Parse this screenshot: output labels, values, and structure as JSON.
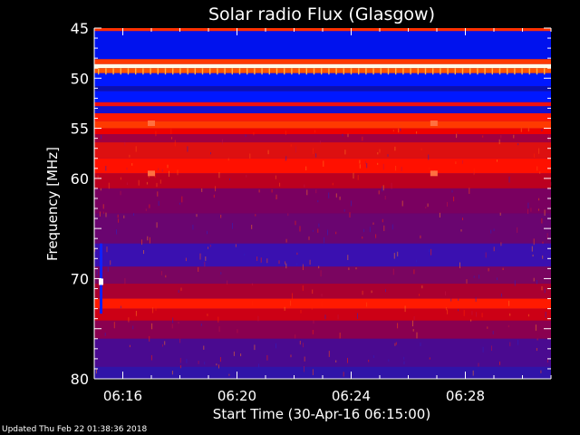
{
  "chart_data": {
    "type": "heatmap",
    "title": "Solar radio Flux (Glasgow)",
    "xlabel": "Start Time (30-Apr-16 06:15:00)",
    "ylabel": "Frequency [MHz]",
    "x_range_minutes": [
      0,
      16
    ],
    "y_range_mhz": [
      45,
      80
    ],
    "x_ticks": [
      {
        "label": "06:16",
        "minute": 1
      },
      {
        "label": "06:20",
        "minute": 5
      },
      {
        "label": "06:24",
        "minute": 9
      },
      {
        "label": "06:28",
        "minute": 13
      }
    ],
    "y_ticks": [
      {
        "label": "45",
        "value": 45
      },
      {
        "label": "50",
        "value": 50
      },
      {
        "label": "55",
        "value": 55
      },
      {
        "label": "60",
        "value": 60
      },
      {
        "label": "70",
        "value": 70
      },
      {
        "label": "80",
        "value": 80
      }
    ],
    "bands": [
      {
        "from": 45.0,
        "to": 45.3,
        "color": "#ff3000"
      },
      {
        "from": 45.3,
        "to": 48.1,
        "color": "#0012ee"
      },
      {
        "from": 48.1,
        "to": 48.6,
        "color": "#ff3a00"
      },
      {
        "from": 48.6,
        "to": 49.0,
        "color": "#fffbe8"
      },
      {
        "from": 49.0,
        "to": 49.5,
        "color": "#ff5500"
      },
      {
        "from": 49.5,
        "to": 50.8,
        "color": "#0018ff"
      },
      {
        "from": 50.8,
        "to": 51.3,
        "color": "#0a10b0"
      },
      {
        "from": 51.3,
        "to": 52.4,
        "color": "#0018ff"
      },
      {
        "from": 52.4,
        "to": 52.8,
        "color": "#f01010"
      },
      {
        "from": 52.8,
        "to": 53.5,
        "color": "#1212d0"
      },
      {
        "from": 53.5,
        "to": 54.3,
        "color": "#ff1a00"
      },
      {
        "from": 54.3,
        "to": 55.0,
        "color": "#ff3a00"
      },
      {
        "from": 55.0,
        "to": 55.6,
        "color": "#ee0000"
      },
      {
        "from": 55.6,
        "to": 56.4,
        "color": "#a00040"
      },
      {
        "from": 56.4,
        "to": 58.0,
        "color": "#dd1010"
      },
      {
        "from": 58.0,
        "to": 59.5,
        "color": "#ff1000"
      },
      {
        "from": 59.5,
        "to": 61.0,
        "color": "#bb0020"
      },
      {
        "from": 61.0,
        "to": 63.5,
        "color": "#7a0060"
      },
      {
        "from": 63.5,
        "to": 66.5,
        "color": "#6a0570"
      },
      {
        "from": 66.5,
        "to": 68.8,
        "color": "#3a10b0"
      },
      {
        "from": 68.8,
        "to": 70.5,
        "color": "#7a0560"
      },
      {
        "from": 70.5,
        "to": 72.0,
        "color": "#aa0030"
      },
      {
        "from": 72.0,
        "to": 73.0,
        "color": "#ff1a00"
      },
      {
        "from": 73.0,
        "to": 74.2,
        "color": "#cc0015"
      },
      {
        "from": 74.2,
        "to": 76.0,
        "color": "#8a0050"
      },
      {
        "from": 76.0,
        "to": 78.8,
        "color": "#4a0a90"
      },
      {
        "from": 78.8,
        "to": 80.0,
        "color": "#3014a8"
      }
    ],
    "colorbar": "none",
    "grid": false
  },
  "footer": {
    "updated": "Updated Thu Feb 22 01:38:36 2018"
  },
  "colors": {
    "background": "#000000",
    "text": "#ffffff"
  }
}
